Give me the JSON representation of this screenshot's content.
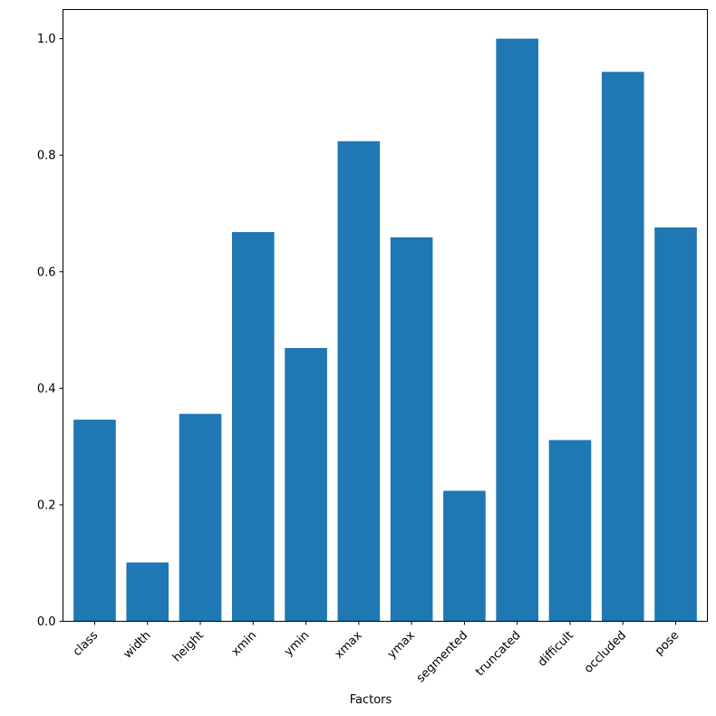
{
  "chart_data": {
    "type": "bar",
    "xlabel": "Factors",
    "ylabel": "",
    "title": "",
    "categories": [
      "class",
      "width",
      "height",
      "xmin",
      "ymin",
      "xmax",
      "ymax",
      "segmented",
      "truncated",
      "difficult",
      "occluded",
      "pose"
    ],
    "values": [
      0.346,
      0.101,
      0.356,
      0.668,
      0.469,
      0.824,
      0.659,
      0.224,
      1.0,
      0.311,
      0.943,
      0.676
    ],
    "ylim": [
      0,
      1.05
    ],
    "yticks": [
      0.0,
      0.2,
      0.4,
      0.6,
      0.8,
      1.0
    ],
    "ytick_labels": [
      "0.0",
      "0.2",
      "0.4",
      "0.6",
      "0.8",
      "1.0"
    ],
    "bar_color": "#1f77b4",
    "grid": false,
    "legend": "none"
  }
}
